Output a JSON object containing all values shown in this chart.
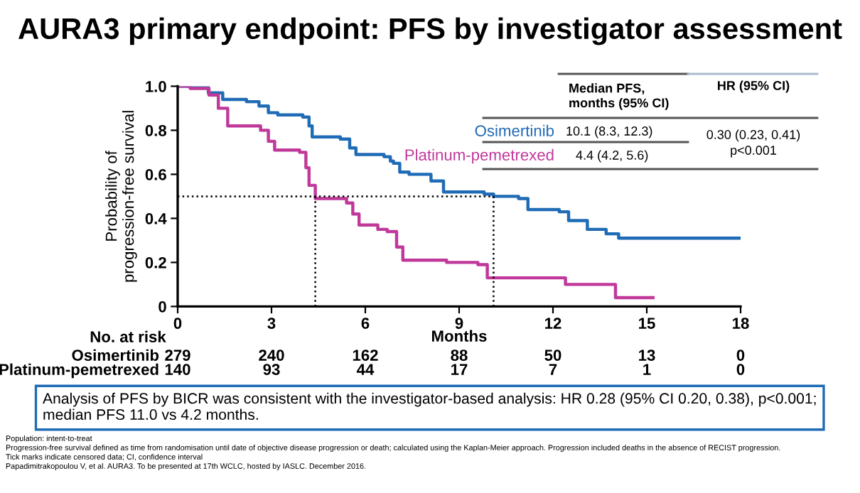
{
  "chart_data": {
    "type": "step",
    "title": "AURA3 primary endpoint: PFS by investigator assessment",
    "xlabel": "Months",
    "ylabel": "Probability of\nprogression-free survival",
    "xlim": [
      0,
      18
    ],
    "xticks": [
      0,
      3,
      6,
      9,
      12,
      15,
      18
    ],
    "ylim": [
      0,
      1.0
    ],
    "yticks": [
      {
        "value": 0,
        "label": "0"
      },
      0.2,
      0.4,
      0.6,
      0.8,
      {
        "value": 1.0,
        "label": "1.0"
      }
    ],
    "grid": false,
    "legend": false,
    "marker": "none",
    "line_style": "solid",
    "series": [
      {
        "name": "Osimertinib",
        "color": "#1f6bb5",
        "x": [
          0,
          0.98,
          1.44,
          2.2,
          2.6,
          2.9,
          3.2,
          4.0,
          4.2,
          4.3,
          5.2,
          5.5,
          5.7,
          6.6,
          6.8,
          6.9,
          7.1,
          7.4,
          8.1,
          8.5,
          9.8,
          10.1,
          10.9,
          11.2,
          12.2,
          12.5,
          13.1,
          13.7,
          14.1,
          17.95
        ],
        "values": [
          1.0,
          0.97,
          0.94,
          0.93,
          0.91,
          0.88,
          0.87,
          0.86,
          0.82,
          0.77,
          0.76,
          0.72,
          0.69,
          0.68,
          0.66,
          0.65,
          0.61,
          0.6,
          0.57,
          0.52,
          0.51,
          0.5,
          0.49,
          0.44,
          0.43,
          0.39,
          0.35,
          0.33,
          0.31,
          0.31
        ]
      },
      {
        "name": "Platinum-pemetrexed",
        "color": "#c0399a",
        "x": [
          0,
          0.4,
          1.0,
          1.3,
          1.6,
          2.65,
          2.9,
          3.1,
          3.9,
          4.1,
          4.2,
          4.4,
          5.4,
          5.6,
          5.8,
          6.4,
          6.7,
          7.0,
          7.2,
          8.6,
          9.6,
          9.9,
          12.4,
          14.0,
          15.2
        ],
        "values": [
          1.0,
          0.99,
          0.96,
          0.9,
          0.82,
          0.8,
          0.75,
          0.71,
          0.7,
          0.63,
          0.55,
          0.49,
          0.47,
          0.42,
          0.37,
          0.35,
          0.34,
          0.27,
          0.21,
          0.2,
          0.19,
          0.13,
          0.1,
          0.04,
          0.04
        ]
      }
    ],
    "ref_lines": [
      {
        "axis": "y",
        "value": 0.5,
        "line_style": "dotted",
        "color": "#000000"
      },
      {
        "axis": "x",
        "value": 4.4,
        "line_style": "dotted",
        "color": "#000000"
      },
      {
        "axis": "x",
        "value": 10.1,
        "line_style": "dotted",
        "color": "#000000"
      }
    ],
    "annotations": [
      "Median PFS,\nmonths (95% CI)",
      "HR (95% CI)",
      "10.1 (8.3, 12.3)",
      "4.4 (4.2, 5.6)",
      "0.30 (0.23, 0.41)\np<0.001",
      "No. at risk",
      "279",
      "240",
      "162",
      "88",
      "50",
      "13",
      "0",
      "140",
      "93",
      "44",
      "17",
      "7",
      "1",
      "0",
      "Analysis of PFS by BICR was consistent with the investigator-based analysis: HR 0.28 (95% CI 0.20, 0.38), p<0.001; median PFS 11.0 vs 4.2 months.",
      "Population: intent-to-treat",
      "Progression-free survival defined as time from randomisation until date of objective disease progression or death; calculated using the Kaplan-Meier approach. Progression included deaths in the absence of RECIST progression.",
      "Tick marks indicate censored data; CI, confidence interval",
      "Papadimitrakopoulou V, et al. AURA3. To be presented at 17th WCLC, hosted by IASLC. December 2016."
    ]
  }
}
